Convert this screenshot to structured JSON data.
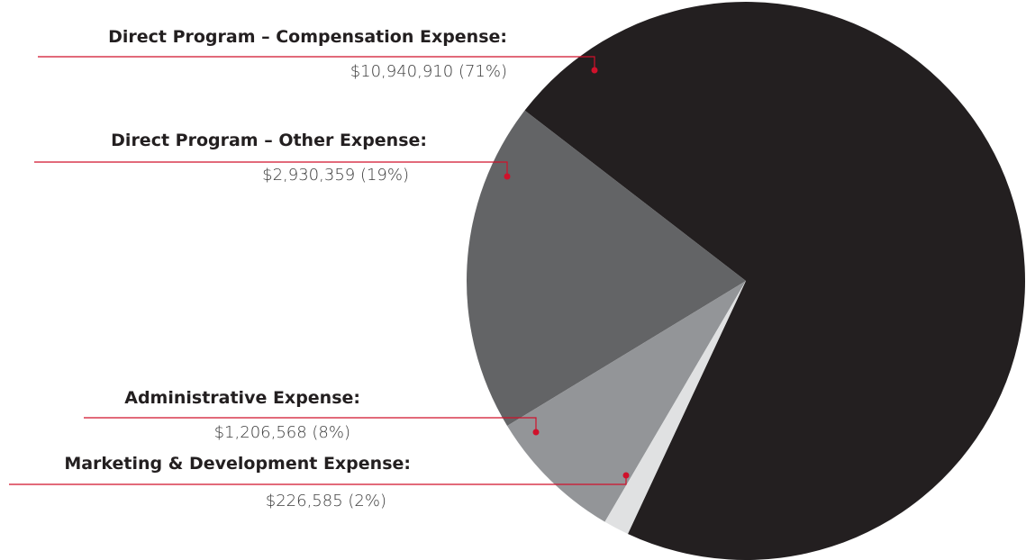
{
  "chart_data": {
    "type": "pie",
    "categories": [
      "Direct Program – Compensation Expense:",
      "Direct Program – Other Expense:",
      "Administrative Expense:",
      "Marketing & Development Expense:"
    ],
    "values": [
      10940910,
      2930359,
      1206568,
      226585
    ],
    "value_labels": [
      "$10,940,910 (71%)",
      "$2,930,359 (19%)",
      "$1,206,568 (8%)",
      "$226,585 (2%)"
    ],
    "colors": [
      "#231f20",
      "#636466",
      "#939598",
      "#e0e1e2"
    ],
    "leader_color": "#d0112b"
  }
}
